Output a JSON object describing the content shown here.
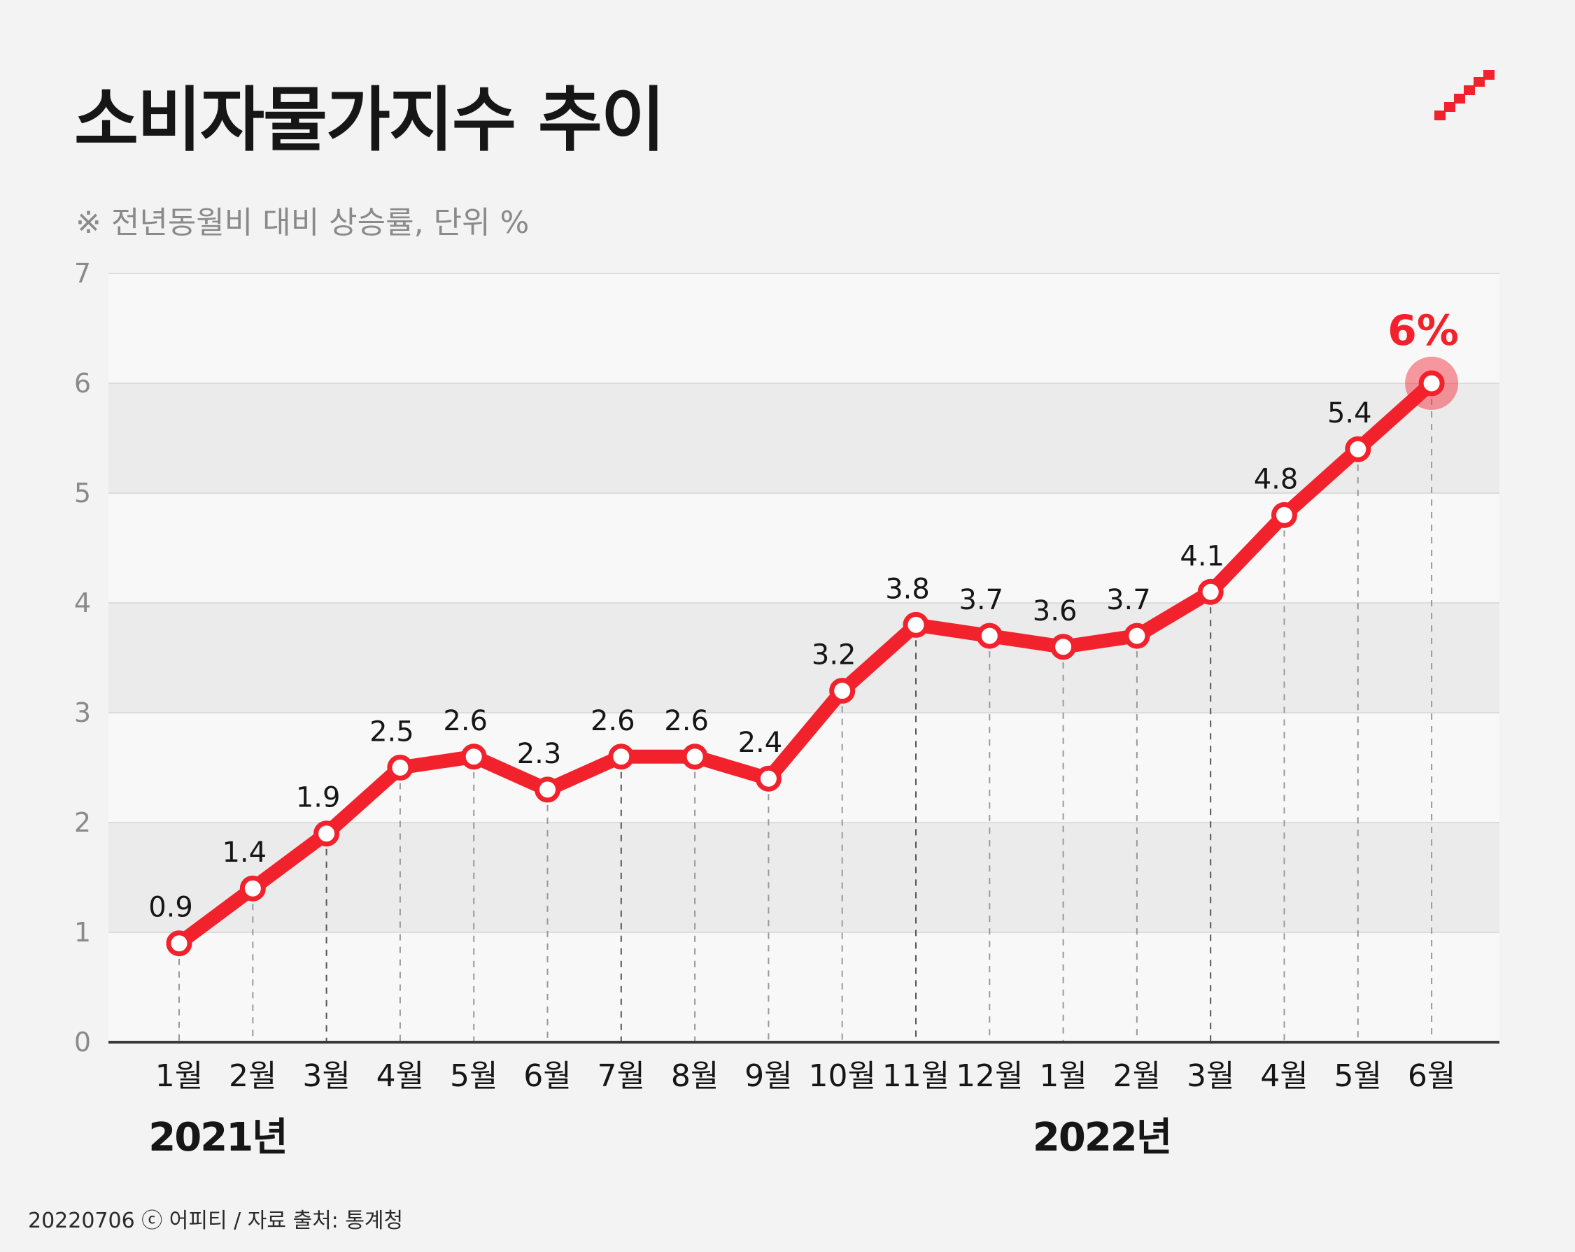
{
  "title": "소비자물가지수 추이",
  "subtitle": "※ 전년동월비 대비 상승률, 단위 %",
  "footer": "20220706 ⓒ 어피티 / 자료 출처: 통계청",
  "colors": {
    "accent": "#f2222c",
    "band_light": "#f8f8f8",
    "band_dark": "#ebebeb"
  },
  "logo_icon": "ascending-stairs-icon",
  "chart_data": {
    "type": "line",
    "categories": [
      "1월",
      "2월",
      "3월",
      "4월",
      "5월",
      "6월",
      "7월",
      "8월",
      "9월",
      "10월",
      "11월",
      "12월",
      "1월",
      "2월",
      "3월",
      "4월",
      "5월",
      "6월"
    ],
    "values": [
      0.9,
      1.4,
      1.9,
      2.5,
      2.6,
      2.3,
      2.6,
      2.6,
      2.4,
      3.2,
      3.8,
      3.7,
      3.6,
      3.7,
      4.1,
      4.8,
      5.4,
      6.0
    ],
    "data_labels": [
      "0.9",
      "1.4",
      "1.9",
      "2.5",
      "2.6",
      "2.3",
      "2.6",
      "2.6",
      "2.4",
      "3.2",
      "3.8",
      "3.7",
      "3.6",
      "3.7",
      "4.1",
      "4.8",
      "5.4",
      "6%"
    ],
    "highlight_index": 17,
    "year_groups": [
      {
        "label": "2021년",
        "first_index": 0
      },
      {
        "label": "2022년",
        "first_index": 12
      }
    ],
    "yticks": [
      "0",
      "1",
      "2",
      "3",
      "4",
      "5",
      "6",
      "7"
    ],
    "ylim": [
      0,
      7
    ],
    "grid": true
  }
}
